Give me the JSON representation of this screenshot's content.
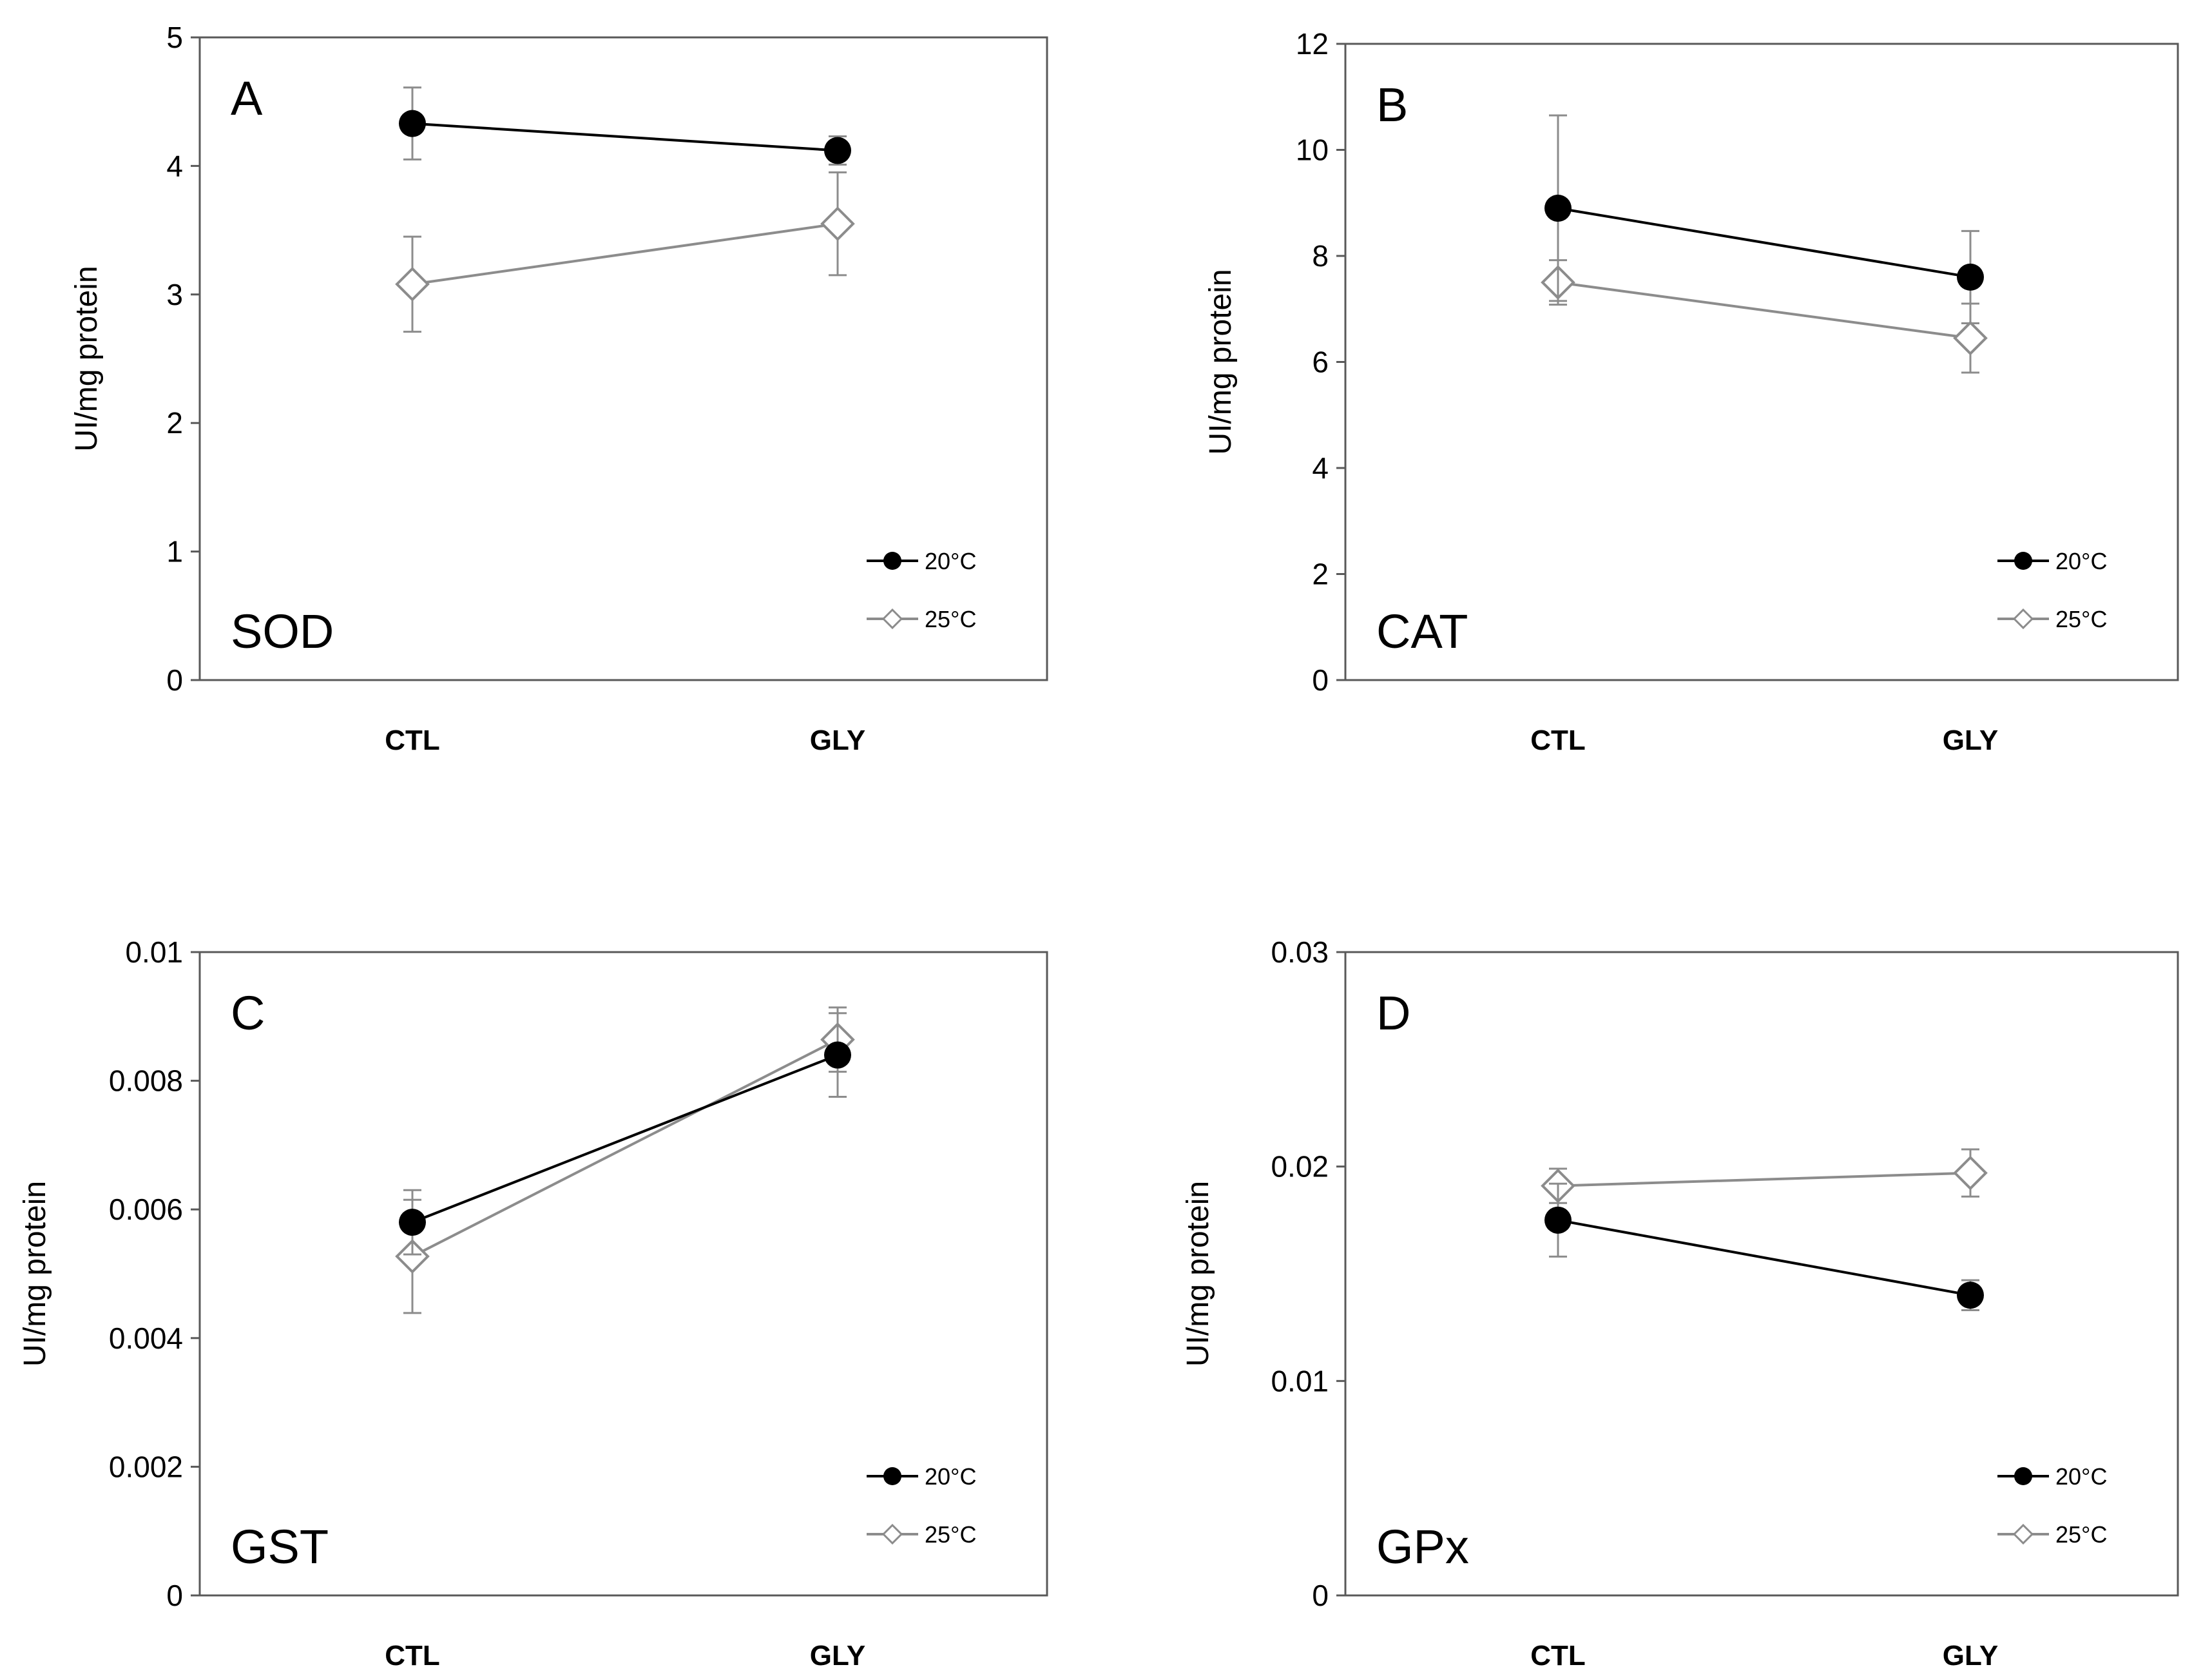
{
  "figure": {
    "series_colors": {
      "s20": "#000000",
      "s25": "#8c8c8c"
    },
    "legend_labels": [
      "20°C",
      "25°C"
    ]
  },
  "chart_data": [
    {
      "type": "line",
      "panel": "A",
      "name": "SOD",
      "ylabel": "UI/mg protein",
      "categories": [
        "CTL",
        "GLY"
      ],
      "ylim": [
        0,
        5
      ],
      "yticks": [
        0,
        1,
        2,
        3,
        4,
        5
      ],
      "ytick_labels": [
        "0",
        "1",
        "2",
        "3",
        "4",
        "5"
      ],
      "series": [
        {
          "name": "20°C",
          "values": [
            4.33,
            4.12
          ],
          "errors": [
            0.28,
            0.11
          ]
        },
        {
          "name": "25°C",
          "values": [
            3.08,
            3.55
          ],
          "errors": [
            0.37,
            0.4
          ]
        }
      ]
    },
    {
      "type": "line",
      "panel": "B",
      "name": "CAT",
      "ylabel": "UI/mg protein",
      "categories": [
        "CTL",
        "GLY"
      ],
      "ylim": [
        0,
        12
      ],
      "yticks": [
        0,
        2,
        4,
        6,
        8,
        10,
        12
      ],
      "ytick_labels": [
        "0",
        "2",
        "4",
        "6",
        "8",
        "10",
        "12"
      ],
      "series": [
        {
          "name": "20°C",
          "values": [
            8.9,
            7.6
          ],
          "errors": [
            1.75,
            0.87
          ]
        },
        {
          "name": "25°C",
          "values": [
            7.5,
            6.45
          ],
          "errors": [
            0.42,
            0.65
          ]
        }
      ]
    },
    {
      "type": "line",
      "panel": "C",
      "name": "GST",
      "ylabel": "UI/mg protein",
      "categories": [
        "CTL",
        "GLY"
      ],
      "ylim": [
        0,
        0.01
      ],
      "yticks": [
        0,
        0.002,
        0.004,
        0.006,
        0.008,
        0.01
      ],
      "ytick_labels": [
        "0",
        "0.002",
        "0.004",
        "0.006",
        "0.008",
        "0.01"
      ],
      "series": [
        {
          "name": "20°C",
          "values": [
            0.0058,
            0.0084
          ],
          "errors": [
            0.0005,
            0.00065
          ]
        },
        {
          "name": "25°C",
          "values": [
            0.00527,
            0.00864
          ],
          "errors": [
            0.00088,
            0.0005
          ]
        }
      ]
    },
    {
      "type": "line",
      "panel": "D",
      "name": "GPx",
      "ylabel": "UI/mg protein",
      "categories": [
        "CTL",
        "GLY"
      ],
      "ylim": [
        0,
        0.03
      ],
      "yticks": [
        0,
        0.01,
        0.02,
        0.03
      ],
      "ytick_labels": [
        "0",
        "0.01",
        "0.02",
        "0.03"
      ],
      "series": [
        {
          "name": "20°C",
          "values": [
            0.0175,
            0.014
          ],
          "errors": [
            0.0017,
            0.0007
          ]
        },
        {
          "name": "25°C",
          "values": [
            0.0191,
            0.0197
          ],
          "errors": [
            0.0008,
            0.0011
          ]
        }
      ]
    }
  ]
}
